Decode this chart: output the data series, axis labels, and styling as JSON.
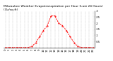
{
  "title": "Milwaukee Weather Evapotranspiration per Hour (Last 24 Hours) (Oz/sq ft)",
  "hours": [
    0,
    1,
    2,
    3,
    4,
    5,
    6,
    7,
    8,
    9,
    10,
    11,
    12,
    13,
    14,
    15,
    16,
    17,
    18,
    19,
    20,
    21,
    22,
    23
  ],
  "values": [
    0,
    0,
    0,
    0,
    0,
    0,
    0,
    0.01,
    0.04,
    0.09,
    0.14,
    0.18,
    0.26,
    0.26,
    0.2,
    0.18,
    0.14,
    0.09,
    0.04,
    0.01,
    0,
    0,
    0,
    0
  ],
  "line_color": "#ff0000",
  "bg_color": "#ffffff",
  "grid_color": "#999999",
  "xlim": [
    -0.5,
    23.5
  ],
  "ylim": [
    0,
    0.3
  ],
  "ytick_values": [
    0.05,
    0.1,
    0.15,
    0.2,
    0.25,
    0.3
  ],
  "ytick_labels": [
    ".05",
    ".1",
    ".15",
    ".2",
    ".25",
    ".3"
  ],
  "title_fontsize": 3.2,
  "tick_fontsize": 2.8,
  "line_width": 0.7,
  "marker_size": 1.0
}
